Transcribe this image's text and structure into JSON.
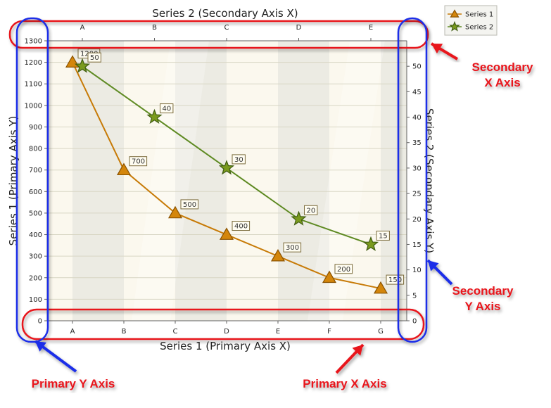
{
  "chart_data": {
    "type": "line",
    "grid": true,
    "legend_position": "top-right",
    "primary_x": {
      "label": "Series 1 (Primary Axis X)",
      "categories": [
        "A",
        "B",
        "C",
        "D",
        "E",
        "F",
        "G"
      ]
    },
    "secondary_x": {
      "label": "Series 2 (Secondary Axis X)",
      "categories": [
        "A",
        "B",
        "C",
        "D",
        "E"
      ]
    },
    "primary_y": {
      "label": "Series 1 (Primary Axis Y)",
      "ylim": [
        0,
        1300
      ],
      "ticks": [
        "0",
        "100",
        "200",
        "300",
        "400",
        "500",
        "600",
        "700",
        "800",
        "900",
        "1000",
        "1100",
        "1200",
        "1300"
      ]
    },
    "secondary_y": {
      "label": "Series 2 (Secondary Axis Y)",
      "ylim": [
        0,
        55
      ],
      "ticks": [
        "0",
        "5",
        "10",
        "15",
        "20",
        "25",
        "30",
        "35",
        "40",
        "45",
        "50"
      ]
    },
    "series": [
      {
        "name": "Series 1",
        "axes": "primary",
        "marker": "triangle",
        "color": "#d4860b",
        "values": [
          1200,
          700,
          500,
          400,
          300,
          200,
          150
        ],
        "labels": [
          "1200",
          "700",
          "500",
          "400",
          "300",
          "200",
          "150"
        ]
      },
      {
        "name": "Series 2",
        "axes": "secondary",
        "marker": "star",
        "color": "#7a9a1e",
        "values": [
          50,
          40,
          30,
          20,
          15
        ],
        "labels": [
          "50",
          "40",
          "30",
          "20",
          "15"
        ]
      }
    ]
  },
  "annotations": {
    "secondary_x_axis": "Secondary\nX Axis",
    "secondary_y_axis": "Secondary\nY Axis",
    "primary_y_axis": "Primary Y Axis",
    "primary_x_axis": "Primary X Axis"
  },
  "colors": {
    "primary_highlight": "#e8121a",
    "secondary_highlight": "#1a2ee8",
    "series1_line": "#c77a06",
    "series2_line": "#5e8a22",
    "plot_band_dark": "#ecebe3",
    "plot_band_light": "#fbf8ee"
  }
}
